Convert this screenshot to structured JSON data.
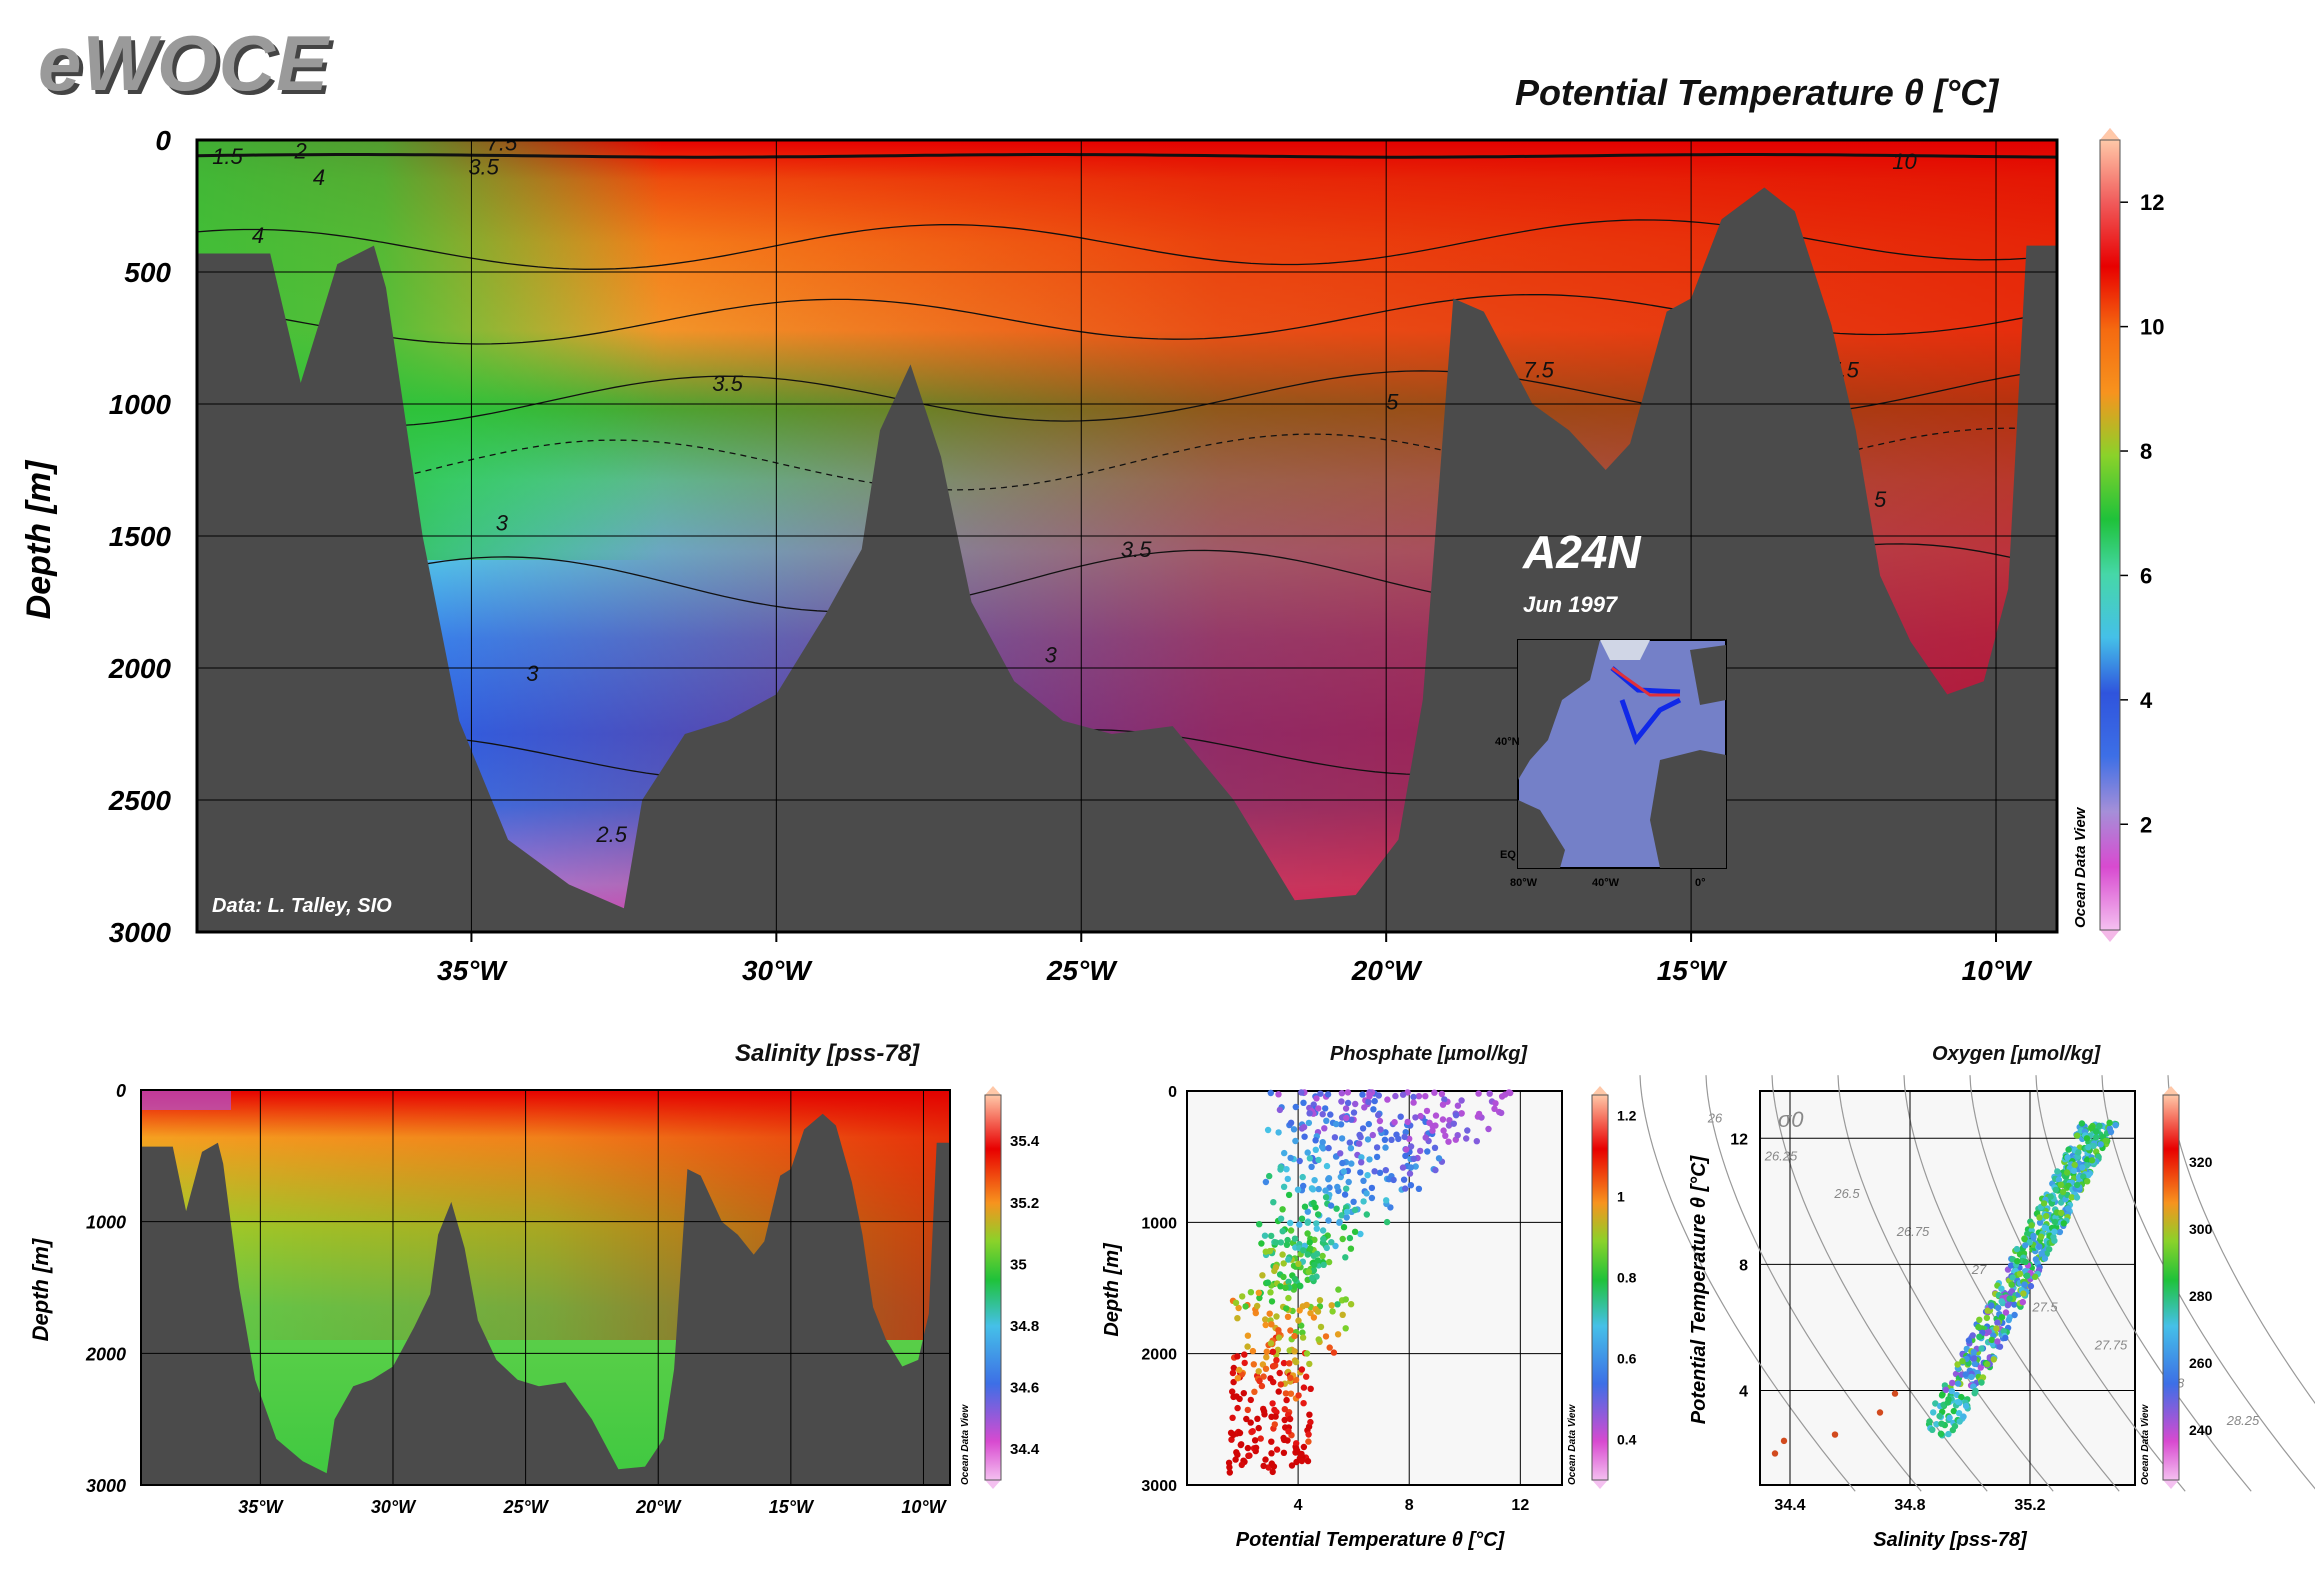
{
  "header": {
    "logo": "eWOCE",
    "ocean_data_view": "Ocean Data View"
  },
  "main_section": {
    "title": "Potential Temperature θ [°C]",
    "ylabel": "Depth [m]",
    "credit": "Data: L. Talley, SIO",
    "cruise": "A24N",
    "date": "Jun 1997",
    "map_labels": [
      "40°N",
      "EQ",
      "80°W",
      "40°W",
      "0°"
    ]
  },
  "chart_data": [
    {
      "type": "heatmap",
      "title": "Potential Temperature θ [°C]",
      "xlabel": "",
      "ylabel": "Depth [m]",
      "xlim": [
        -39.5,
        -9.0
      ],
      "ylim": [
        3000,
        0
      ],
      "x_ticks": [
        -35,
        -30,
        -25,
        -20,
        -15,
        -10
      ],
      "x_tick_labels": [
        "35°W",
        "30°W",
        "25°W",
        "20°W",
        "15°W",
        "10°W"
      ],
      "y_ticks": [
        0,
        500,
        1000,
        1500,
        2000,
        2500,
        3000
      ],
      "y_tick_labels": [
        "0",
        "500",
        "1000",
        "1500",
        "2000",
        "2500",
        "3000"
      ],
      "colorbar": {
        "range": [
          0.3,
          13.0
        ],
        "ticks": [
          2,
          4,
          6,
          8,
          10,
          12
        ]
      },
      "bottom_depth_profile": {
        "x": [
          -39.5,
          -38.3,
          -37.8,
          -37.2,
          -36.6,
          -36.4,
          -35.8,
          -35.2,
          -34.4,
          -33.4,
          -32.5,
          -32.2,
          -31.5,
          -30.8,
          -30.0,
          -29.2,
          -28.6,
          -28.3,
          -27.8,
          -27.3,
          -26.8,
          -26.1,
          -25.3,
          -24.5,
          -23.5,
          -22.5,
          -21.5,
          -20.5,
          -19.8,
          -19.4,
          -18.9,
          -18.4,
          -17.6,
          -17.0,
          -16.4,
          -16.0,
          -15.4,
          -15.0,
          -14.5,
          -13.8,
          -13.3,
          -12.7,
          -12.3,
          -11.9,
          -11.4,
          -10.8,
          -10.2,
          -9.8,
          -9.5,
          -9.0
        ],
        "y": [
          430,
          430,
          920,
          470,
          400,
          560,
          1500,
          2200,
          2650,
          2820,
          2910,
          2500,
          2250,
          2200,
          2100,
          1800,
          1550,
          1100,
          850,
          1200,
          1750,
          2050,
          2200,
          2250,
          2220,
          2500,
          2880,
          2860,
          2650,
          2120,
          600,
          650,
          1000,
          1100,
          1250,
          1150,
          650,
          600,
          300,
          180,
          270,
          700,
          1100,
          1650,
          1900,
          2100,
          2050,
          1700,
          400,
          400
        ]
      },
      "contours": [
        {
          "label": "10",
          "level": 10
        },
        {
          "label": "7.5",
          "level": 7.5
        },
        {
          "label": "5",
          "level": 5
        },
        {
          "label": "4",
          "level": 4
        },
        {
          "label": "3.5",
          "level": 3.5
        },
        {
          "label": "3",
          "level": 3
        },
        {
          "label": "2.5",
          "level": 2.5
        },
        {
          "label": "2",
          "level": 2
        },
        {
          "label": "1.5",
          "level": 1.5
        }
      ]
    },
    {
      "type": "heatmap",
      "title": "Salinity [pss-78]",
      "ylabel": "Depth [m]",
      "xlim": [
        -39.5,
        -9.0
      ],
      "ylim": [
        3000,
        0
      ],
      "x_ticks": [
        -35,
        -30,
        -25,
        -20,
        -15,
        -10
      ],
      "x_tick_labels": [
        "35°W",
        "30°W",
        "25°W",
        "20°W",
        "15°W",
        "10°W"
      ],
      "y_ticks": [
        0,
        1000,
        2000,
        3000
      ],
      "y_tick_labels": [
        "0",
        "1000",
        "2000",
        "3000"
      ],
      "colorbar": {
        "range": [
          34.3,
          35.55
        ],
        "ticks": [
          34.4,
          34.6,
          34.8,
          35.0,
          35.2,
          35.4
        ],
        "tick_labels": [
          "34.4",
          "34.6",
          "34.8",
          "35",
          "35.2",
          "35.4"
        ]
      }
    },
    {
      "type": "scatter",
      "title": "Phosphate [µmol/kg]",
      "xlabel": "Potential Temperature θ [°C]",
      "ylabel": "Depth [m]",
      "xlim": [
        0,
        13.5
      ],
      "ylim": [
        3000,
        0
      ],
      "x_ticks": [
        4,
        8,
        12
      ],
      "y_ticks": [
        0,
        1000,
        2000,
        3000
      ],
      "colorbar": {
        "range": [
          0.3,
          1.25
        ],
        "ticks": [
          0.4,
          0.6,
          0.8,
          1.0,
          1.2
        ],
        "tick_labels": [
          "0.4",
          "0.6",
          "0.8",
          "1",
          "1.2"
        ]
      },
      "relationship": "depth decreases with temperature; deep cold water high phosphate (~1.1-1.2), warm surface water low phosphate (~0.4-0.6)"
    },
    {
      "type": "scatter",
      "title": "Oxygen [µmol/kg]",
      "xlabel": "Salinity [pss-78]",
      "ylabel": "Potential Temperature θ [°C]",
      "xlim": [
        34.3,
        35.55
      ],
      "ylim": [
        1.0,
        13.5
      ],
      "x_ticks": [
        34.4,
        34.8,
        35.2
      ],
      "y_ticks": [
        4,
        8,
        12
      ],
      "density_label": "σ0",
      "density_isolines": [
        "26",
        "26.25",
        "26.5",
        "26.75",
        "27",
        "27.5",
        "27.75",
        "28",
        "28.25"
      ],
      "colorbar": {
        "range": [
          225,
          340
        ],
        "ticks": [
          240,
          260,
          280,
          300,
          320
        ]
      }
    }
  ],
  "sub_titles": {
    "salinity": "Salinity [pss-78]",
    "phosphate": "Phosphate [µmol/kg]",
    "oxygen": "Oxygen [µmol/kg]",
    "ts_xlabel": "Salinity [pss-78]",
    "ts_ylabel": "Potential Temperature θ [°C]",
    "pt_xlabel": "Potential Temperature θ [°C]",
    "depth_label": "Depth [m]"
  },
  "colors": {
    "land": "#4b4b4b",
    "grid": "#000000"
  }
}
